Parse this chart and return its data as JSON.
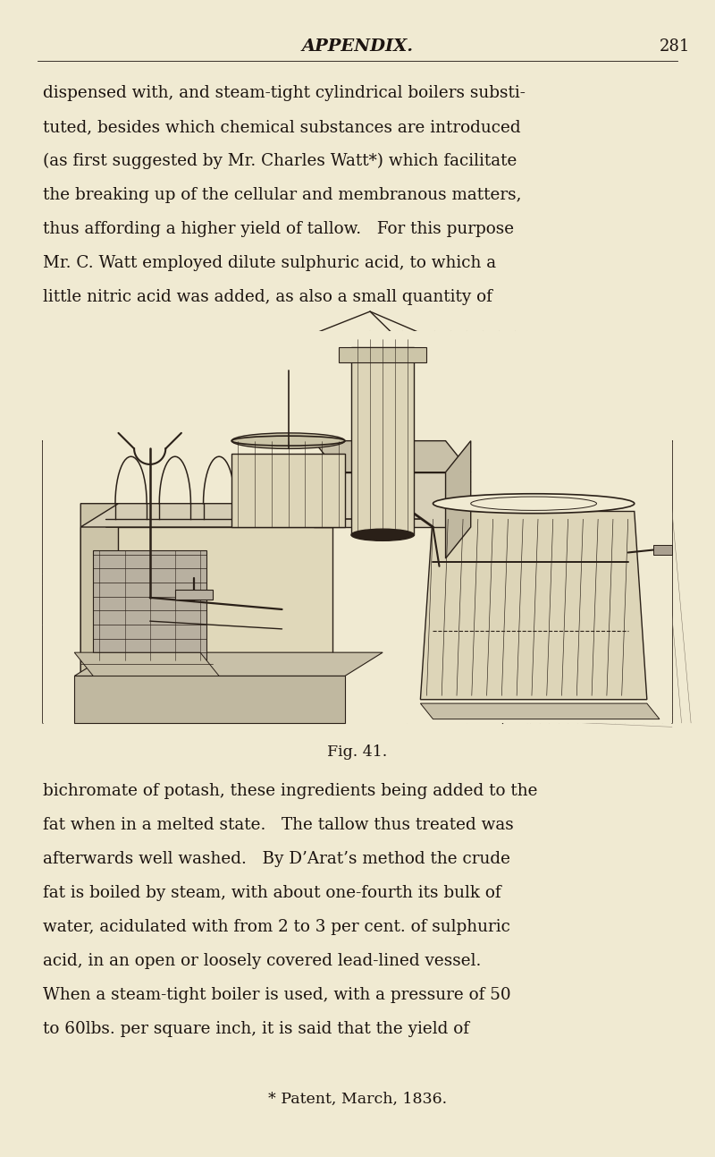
{
  "background_color": "#f0ead2",
  "page_width": 8.0,
  "page_height": 12.93,
  "dpi": 100,
  "header_title": "APPENDIX.",
  "header_page": "281",
  "top_text_lines": [
    "dispensed with, and steam-tight cylindrical boilers substi-",
    "tuted, besides which chemical substances are introduced",
    "(as first suggested by Mr. Charles Watt*) which facilitate",
    "the breaking up of the cellular and membranous matters,",
    "thus affording a higher yield of tallow.   For this purpose",
    "Mr. C. Watt employed dilute sulphuric acid, to which a",
    "little nitric acid was added, as also a small quantity of"
  ],
  "fig_caption": "Fig. 41.",
  "bottom_text_lines": [
    "bichromate of potash, these ingredients being added to the",
    "fat when in a melted state.   The tallow thus treated was",
    "afterwards well washed.   By D’Arat’s method the crude",
    "fat is boiled by steam, with about one-fourth its bulk of",
    "water, acidulated with from 2 to 3 per cent. of sulphuric",
    "acid, in an open or loosely covered lead-lined vessel.",
    "When a steam-tight boiler is used, with a pressure of 50",
    "to 60lbs. per square inch, it is said that the yield of"
  ],
  "footnote_text": "* Patent, March, 1836.",
  "text_color": "#1c1410",
  "line_color": "#2a2018"
}
